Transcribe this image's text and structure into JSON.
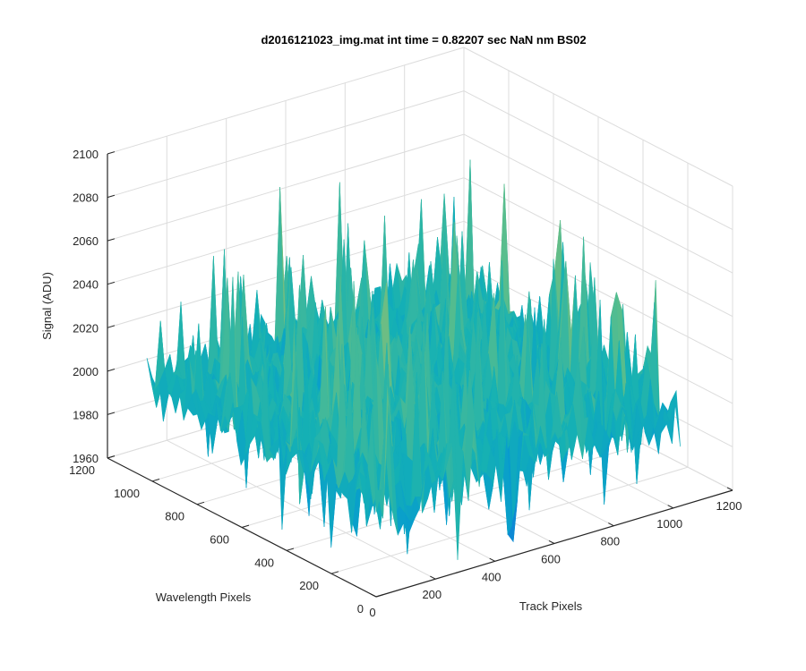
{
  "chart_data": {
    "type": "surface",
    "title": "d2016121023_img.mat int time = 0.82207 sec  NaN nm BS02",
    "xlabel": "Track Pixels",
    "ylabel": "Wavelength Pixels",
    "zlabel": "Signal (ADU)",
    "xlim": [
      0,
      1200
    ],
    "ylim": [
      0,
      1200
    ],
    "zlim": [
      1960,
      2100
    ],
    "x_ticks": [
      "0",
      "200",
      "400",
      "600",
      "800",
      "1000",
      "1200"
    ],
    "y_ticks": [
      "0",
      "200",
      "400",
      "600",
      "800",
      "1000",
      "1200"
    ],
    "z_ticks": [
      "1960",
      "1980",
      "2000",
      "2020",
      "2040",
      "2060",
      "2080",
      "2100"
    ],
    "data_extent": {
      "x": [
        0,
        1024
      ],
      "y": [
        0,
        1024
      ]
    },
    "signal_mean": 2005,
    "signal_range": [
      1965,
      2090
    ],
    "grid": true,
    "colormap": "parula"
  }
}
